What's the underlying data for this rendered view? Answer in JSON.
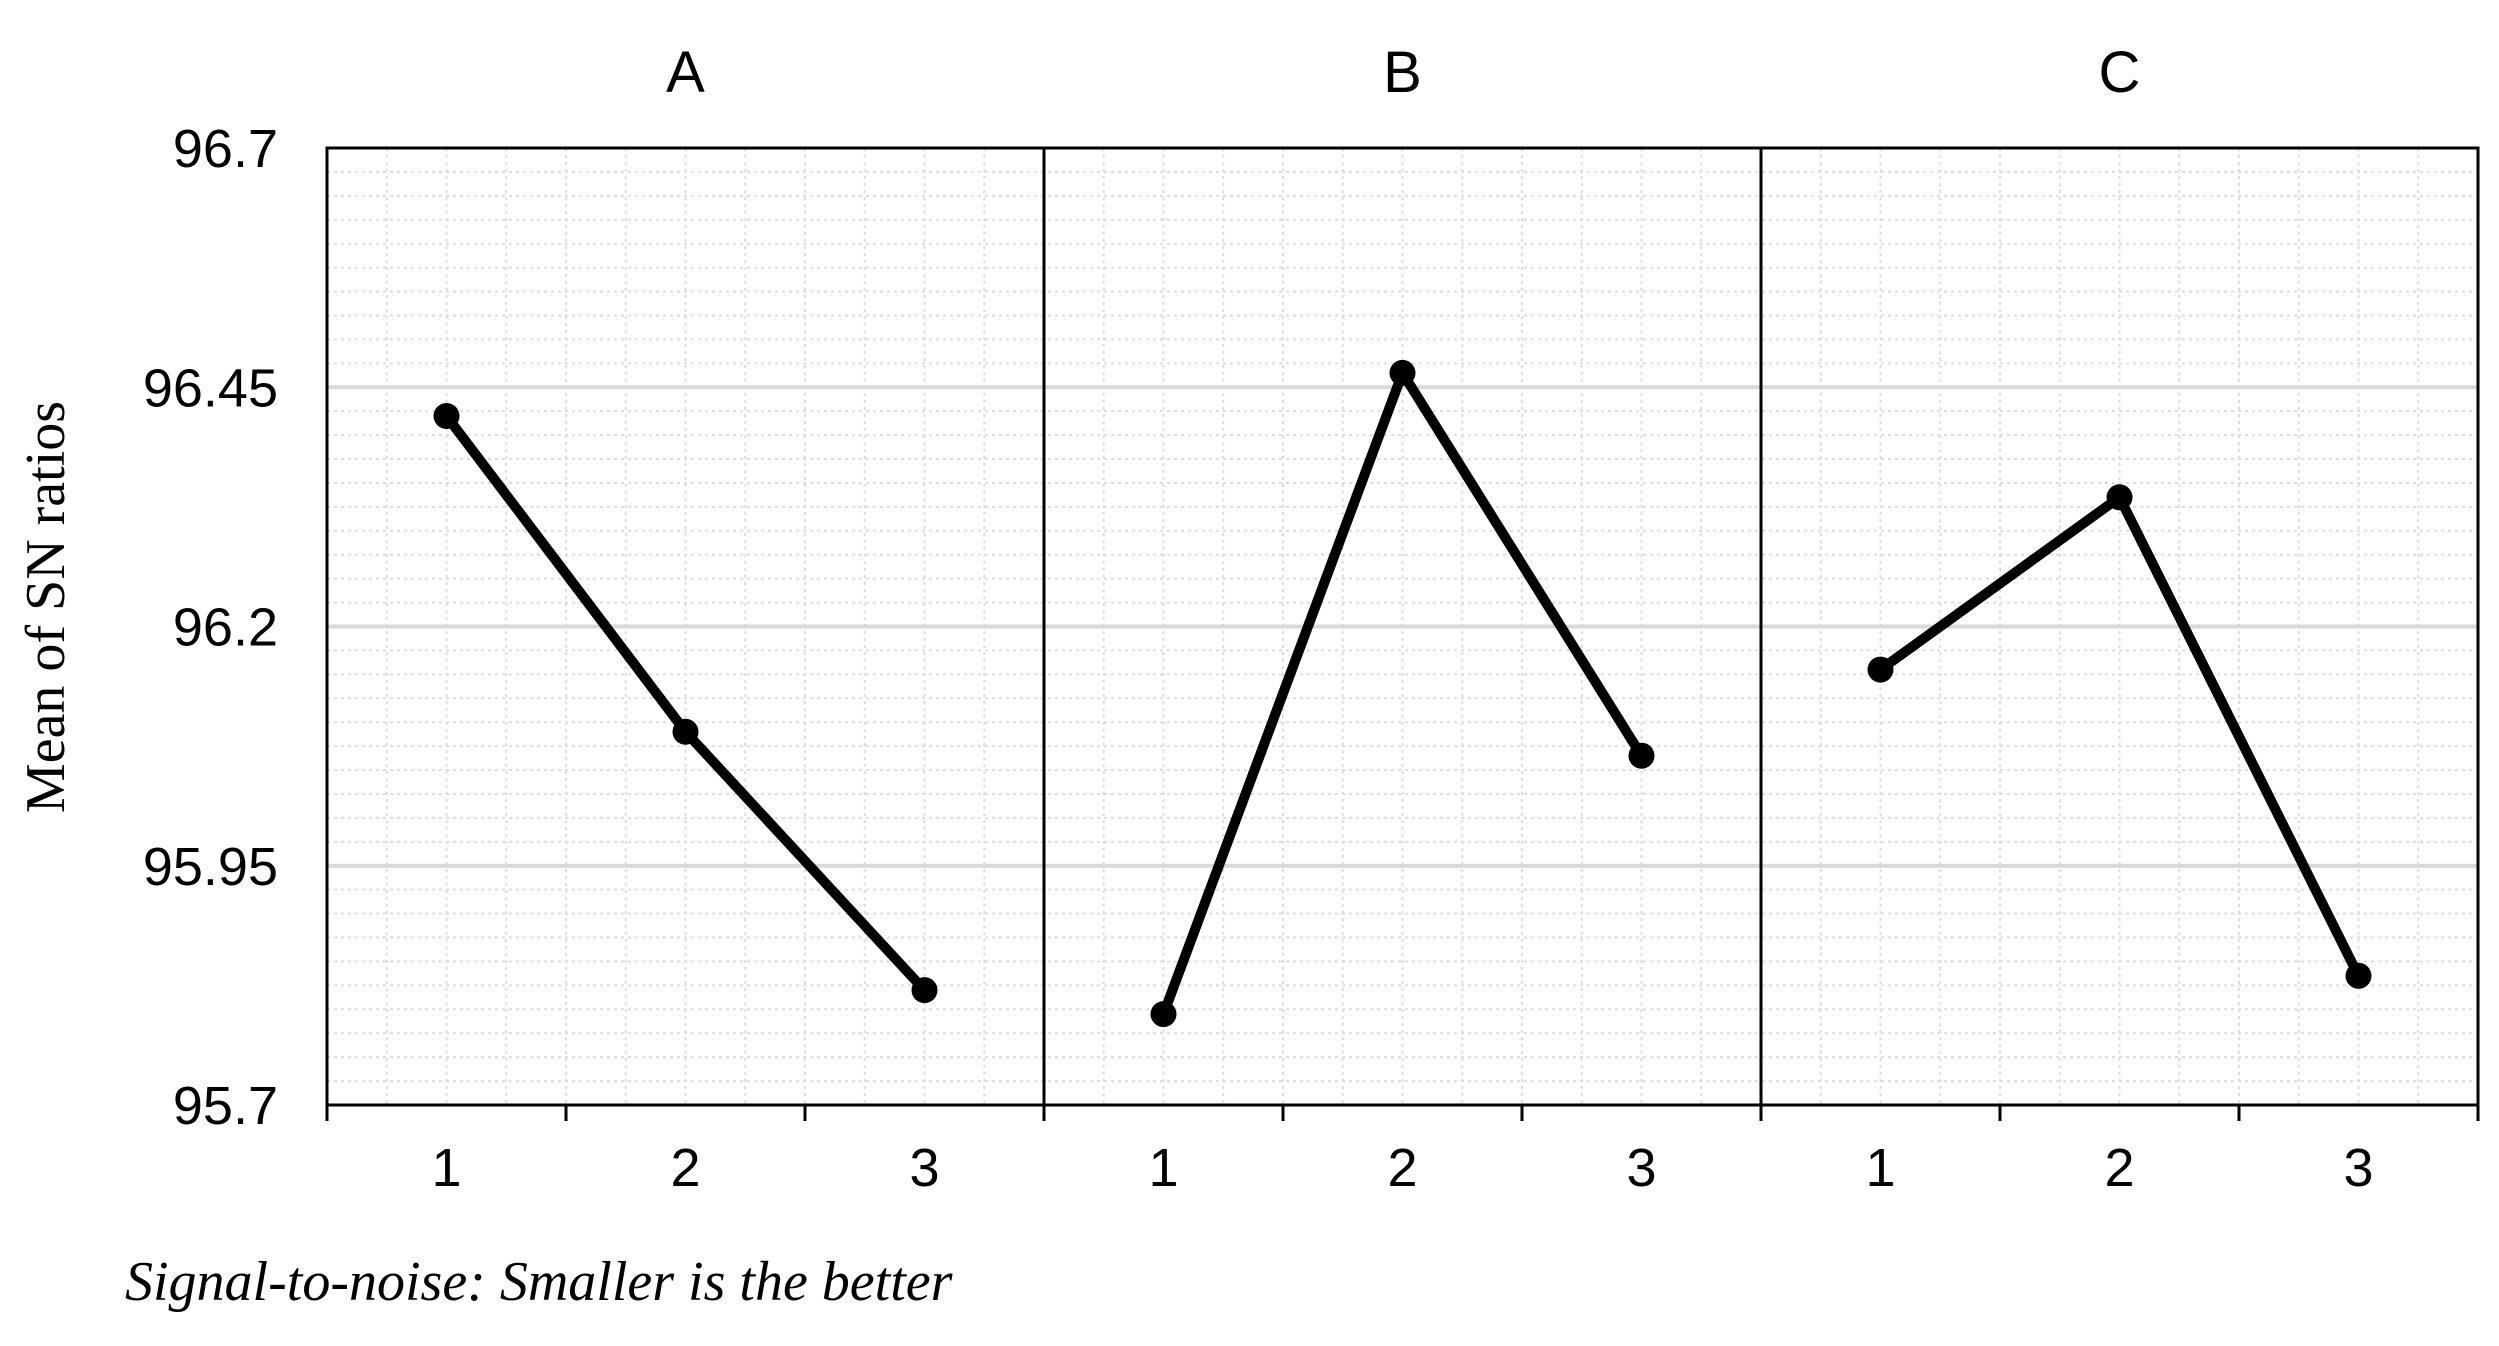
{
  "chart_data": {
    "type": "line",
    "ylabel": "Mean of SN ratios",
    "ylim": [
      95.7,
      96.7
    ],
    "y_ticks": [
      "95.7",
      "95.95",
      "96.2",
      "96.45",
      "96.7"
    ],
    "grid": true,
    "footnote": "Signal-to-noise: Smaller is the better",
    "panels": [
      {
        "name": "A",
        "categories": [
          "1",
          "2",
          "3"
        ],
        "values": [
          96.42,
          96.09,
          95.82
        ]
      },
      {
        "name": "B",
        "categories": [
          "1",
          "2",
          "3"
        ],
        "values": [
          95.795,
          96.465,
          96.065
        ]
      },
      {
        "name": "C",
        "categories": [
          "1",
          "2",
          "3"
        ],
        "values": [
          96.155,
          96.335,
          95.835
        ]
      }
    ],
    "colors": {
      "line": "#000000",
      "marker": "#000000",
      "major_grid": "#d9d9d9",
      "minor_grid": "#dddddd"
    }
  }
}
